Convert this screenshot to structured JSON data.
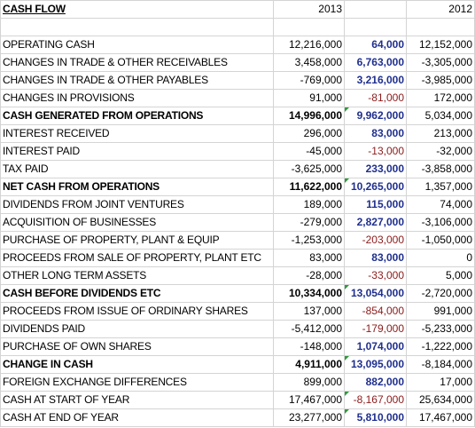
{
  "header": {
    "title": "CASH FLOW",
    "col_2013": "2013",
    "col_diff": "",
    "col_2012": "2012"
  },
  "rows": [
    {
      "label": "OPERATING CASH",
      "y2013": "12,216,000",
      "diff": "64,000",
      "diff_neg": false,
      "y2012": "12,152,000",
      "bold": false,
      "marker": false
    },
    {
      "label": "CHANGES IN TRADE & OTHER RECEIVABLES",
      "y2013": "3,458,000",
      "diff": "6,763,000",
      "diff_neg": false,
      "y2012": "-3,305,000",
      "bold": false,
      "marker": false
    },
    {
      "label": "CHANGES IN TRADE & OTHER PAYABLES",
      "y2013": "-769,000",
      "diff": "3,216,000",
      "diff_neg": false,
      "y2012": "-3,985,000",
      "bold": false,
      "marker": false
    },
    {
      "label": "CHANGES IN PROVISIONS",
      "y2013": "91,000",
      "diff": "-81,000",
      "diff_neg": true,
      "y2012": "172,000",
      "bold": false,
      "marker": false
    },
    {
      "label": "CASH GENERATED FROM OPERATIONS",
      "y2013": "14,996,000",
      "diff": "9,962,000",
      "diff_neg": false,
      "y2012": "5,034,000",
      "bold": true,
      "marker": true
    },
    {
      "label": "INTEREST RECEIVED",
      "y2013": "296,000",
      "diff": "83,000",
      "diff_neg": false,
      "y2012": "213,000",
      "bold": false,
      "marker": false
    },
    {
      "label": "INTEREST PAID",
      "y2013": "-45,000",
      "diff": "-13,000",
      "diff_neg": true,
      "y2012": "-32,000",
      "bold": false,
      "marker": false
    },
    {
      "label": "TAX PAID",
      "y2013": "-3,625,000",
      "diff": "233,000",
      "diff_neg": false,
      "y2012": "-3,858,000",
      "bold": false,
      "marker": false
    },
    {
      "label": "NET CASH FROM OPERATIONS",
      "y2013": "11,622,000",
      "diff": "10,265,000",
      "diff_neg": false,
      "y2012": "1,357,000",
      "bold": true,
      "marker": true
    },
    {
      "label": "DIVIDENDS FROM JOINT VENTURES",
      "y2013": "189,000",
      "diff": "115,000",
      "diff_neg": false,
      "y2012": "74,000",
      "bold": false,
      "marker": false
    },
    {
      "label": "ACQUISITION OF BUSINESSES",
      "y2013": "-279,000",
      "diff": "2,827,000",
      "diff_neg": false,
      "y2012": "-3,106,000",
      "bold": false,
      "marker": false
    },
    {
      "label": "PURCHASE OF PROPERTY, PLANT & EQUIP",
      "y2013": "-1,253,000",
      "diff": "-203,000",
      "diff_neg": true,
      "y2012": "-1,050,000",
      "bold": false,
      "marker": false
    },
    {
      "label": "PROCEEDS FROM SALE OF PROPERTY, PLANT ETC",
      "y2013": "83,000",
      "diff": "83,000",
      "diff_neg": false,
      "y2012": "0",
      "bold": false,
      "marker": false
    },
    {
      "label": "OTHER LONG TERM ASSETS",
      "y2013": "-28,000",
      "diff": "-33,000",
      "diff_neg": true,
      "y2012": "5,000",
      "bold": false,
      "marker": false
    },
    {
      "label": "CASH BEFORE DIVIDENDS ETC",
      "y2013": "10,334,000",
      "diff": "13,054,000",
      "diff_neg": false,
      "y2012": "-2,720,000",
      "bold": true,
      "marker": true
    },
    {
      "label": "PROCEEDS FROM ISSUE OF ORDINARY SHARES",
      "y2013": "137,000",
      "diff": "-854,000",
      "diff_neg": true,
      "y2012": "991,000",
      "bold": false,
      "marker": false
    },
    {
      "label": "DIVIDENDS PAID",
      "y2013": "-5,412,000",
      "diff": "-179,000",
      "diff_neg": true,
      "y2012": "-5,233,000",
      "bold": false,
      "marker": false
    },
    {
      "label": "PURCHASE OF OWN SHARES",
      "y2013": "-148,000",
      "diff": "1,074,000",
      "diff_neg": false,
      "y2012": "-1,222,000",
      "bold": false,
      "marker": false
    },
    {
      "label": "CHANGE IN CASH",
      "y2013": "4,911,000",
      "diff": "13,095,000",
      "diff_neg": false,
      "y2012": "-8,184,000",
      "bold": true,
      "marker": true
    },
    {
      "label": "FOREIGN EXCHANGE DIFFERENCES",
      "y2013": "899,000",
      "diff": "882,000",
      "diff_neg": false,
      "y2012": "17,000",
      "bold": false,
      "marker": false
    },
    {
      "label": "CASH AT START OF YEAR",
      "y2013": "17,467,000",
      "diff": "-8,167,000",
      "diff_neg": true,
      "y2012": "25,634,000",
      "bold": false,
      "marker": true
    },
    {
      "label": "CASH AT END OF YEAR",
      "y2013": "23,277,000",
      "diff": "5,810,000",
      "diff_neg": false,
      "y2012": "17,467,000",
      "bold": false,
      "marker": true
    }
  ]
}
